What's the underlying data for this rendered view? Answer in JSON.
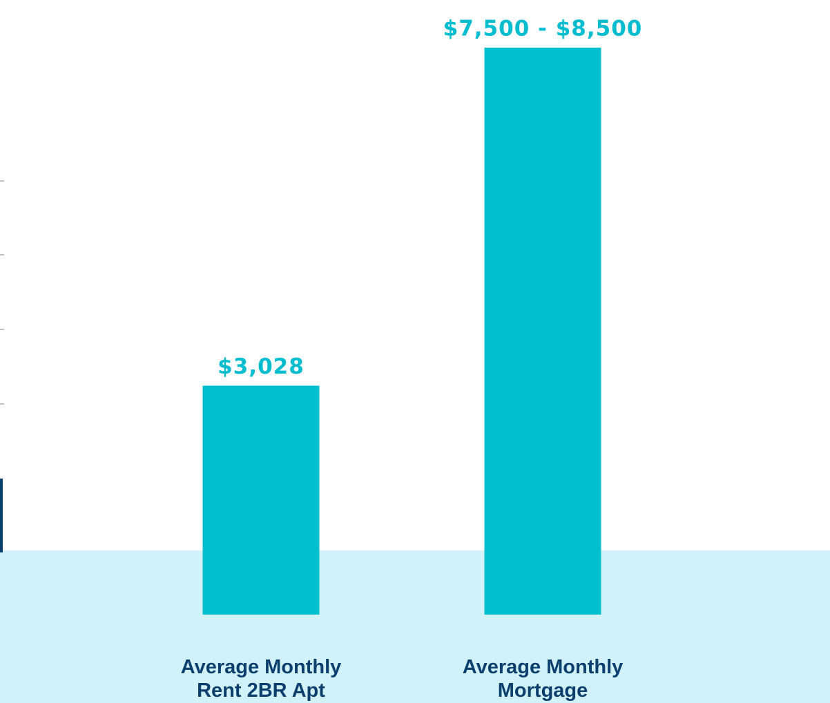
{
  "chart_data": {
    "type": "bar",
    "categories": [
      "Average Monthly Rent 2BR Apt",
      "Average Monthly Mortgage"
    ],
    "values": [
      3028,
      7500
    ],
    "value_labels": [
      "$3,028",
      "$7,500 - $8,500"
    ],
    "color": "#00c0d0"
  }
}
